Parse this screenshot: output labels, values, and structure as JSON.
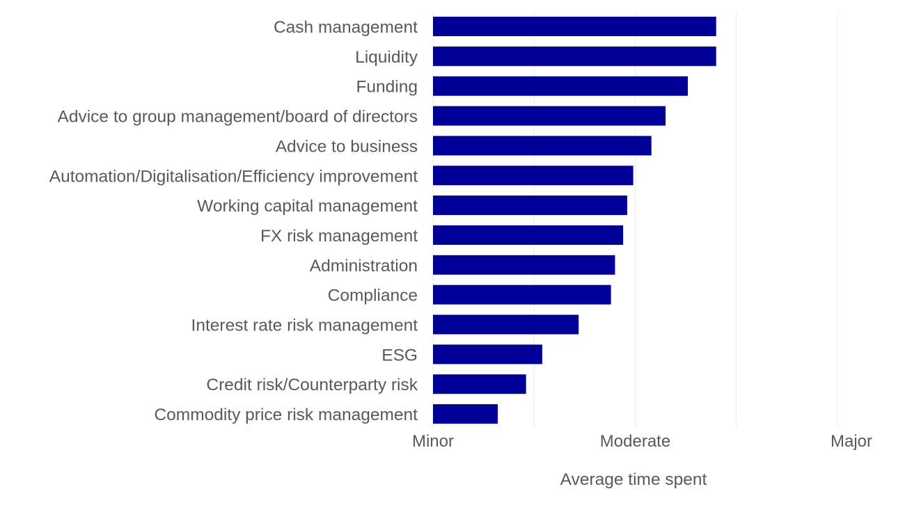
{
  "chart_data": {
    "type": "bar",
    "orientation": "horizontal",
    "categories": [
      "Cash management",
      "Liquidity",
      "Funding",
      "Advice to group management/board of directors",
      "Advice to business",
      "Automation/Digitalisation/Efficiency improvement",
      "Working capital management",
      "FX risk management",
      "Administration",
      "Compliance",
      "Interest rate risk management",
      "ESG",
      "Credit risk/Counterparty risk",
      "Commodity price risk management"
    ],
    "values": [
      2.4,
      2.4,
      2.26,
      2.15,
      2.08,
      1.99,
      1.96,
      1.94,
      1.9,
      1.88,
      1.72,
      1.54,
      1.46,
      1.32
    ],
    "xlim": [
      1,
      3
    ],
    "xticks": [
      {
        "value": 1,
        "label": "Minor"
      },
      {
        "value": 2,
        "label": "Moderate"
      },
      {
        "value": 3,
        "label": "Major"
      }
    ],
    "minor_grid": [
      1.5,
      2.5
    ],
    "xlabel": "Average time spent",
    "ylabel": "",
    "title": "",
    "grid": true,
    "legend": "none",
    "bar_color": "#000099",
    "grid_color": "#ececec",
    "text_color": "#595959"
  }
}
